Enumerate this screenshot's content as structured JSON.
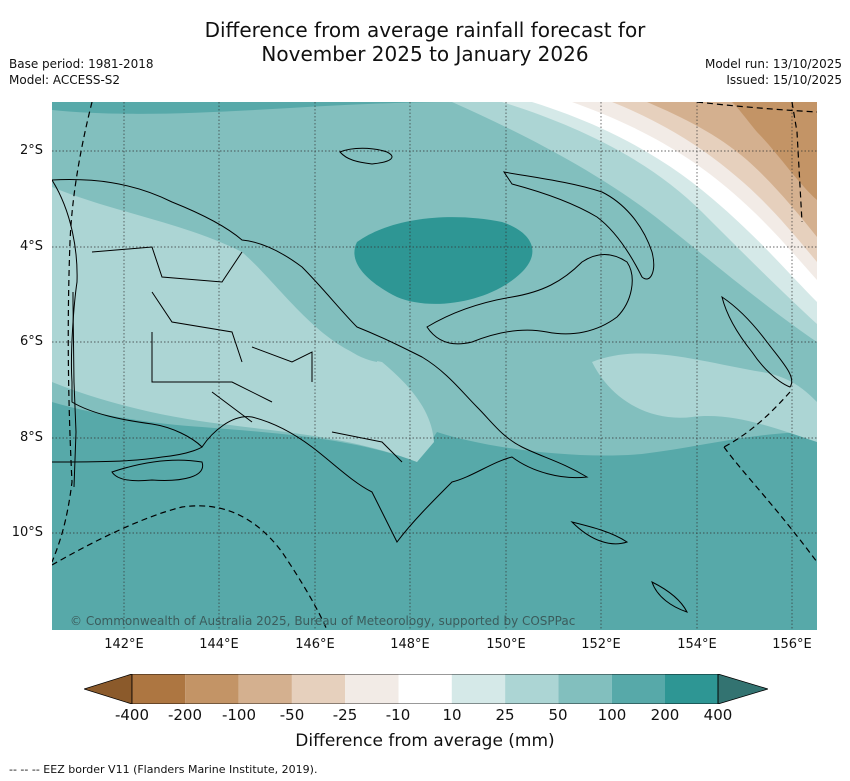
{
  "title_line1": "Difference from average rainfall forecast for",
  "title_line2": "November 2025 to January 2026",
  "base_period": "Base period: 1981-2018",
  "model": "Model: ACCESS-S2",
  "model_run": "Model run: 13/10/2025",
  "issued": "Issued: 15/10/2025",
  "lat_labels": [
    "2°S",
    "4°S",
    "6°S",
    "8°S",
    "10°S"
  ],
  "lon_labels": [
    "142°E",
    "144°E",
    "146°E",
    "148°E",
    "150°E",
    "152°E",
    "154°E",
    "156°E"
  ],
  "copyright": "© Commonwealth of Australia 2025, Bureau of Meteorology, supported by COSPPac",
  "colorbar": {
    "ticks": [
      "-400",
      "-200",
      "-100",
      "-50",
      "-25",
      "-10",
      "10",
      "25",
      "50",
      "100",
      "200",
      "400"
    ],
    "colors": [
      "#8b5a2b",
      "#ad7641",
      "#c39466",
      "#d4b08f",
      "#e6d0bd",
      "#f2ebe6",
      "#ffffff",
      "#d5e9e8",
      "#acd5d4",
      "#82bfbe",
      "#57a9a9",
      "#2e9694",
      "#337371"
    ],
    "label": "Difference from average (mm)"
  },
  "footer": "--  --  -- EEZ border V11 (Flanders Marine Institute, 2019)."
}
